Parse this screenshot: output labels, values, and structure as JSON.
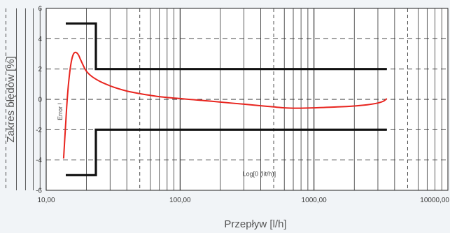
{
  "chart_data": {
    "type": "line",
    "xlabel": "Przepływ [l/h]",
    "ylabel": "Zakres błędów [%]",
    "x_scale": "log",
    "xlim": [
      10,
      10000
    ],
    "ylim": [
      -6,
      6
    ],
    "x_tick_labels": [
      "10,00",
      "100,00",
      "1000,00",
      "10000,00"
    ],
    "x_tick_values": [
      10,
      100,
      1000,
      10000
    ],
    "y_tick_labels": [
      "6",
      "4",
      "2",
      "0",
      "-2",
      "-4",
      "-6"
    ],
    "y_tick_values": [
      6,
      4,
      2,
      0,
      -2,
      -4,
      -6
    ],
    "inner_y_label": "Error !",
    "inner_x_label": "Log[0 (lit/h)]",
    "error_curve": {
      "color": "#e8251f",
      "x": [
        13.5,
        14,
        14.5,
        15,
        15.5,
        16,
        16.5,
        17,
        17.5,
        18,
        19,
        20,
        22,
        25,
        28,
        32,
        40,
        50,
        70,
        100,
        150,
        200,
        300,
        400,
        500,
        600,
        700,
        800,
        1000,
        1500,
        2000,
        2500,
        3000,
        3300,
        3500
      ],
      "y": [
        -3.9,
        -1.5,
        0.5,
        1.8,
        2.6,
        3.0,
        3.1,
        3.05,
        2.9,
        2.65,
        2.2,
        1.85,
        1.5,
        1.2,
        1.0,
        0.8,
        0.55,
        0.38,
        0.18,
        0.05,
        -0.08,
        -0.18,
        -0.32,
        -0.42,
        -0.5,
        -0.56,
        -0.58,
        -0.58,
        -0.56,
        -0.5,
        -0.44,
        -0.36,
        -0.24,
        -0.12,
        0.05
      ]
    },
    "upper_limit": {
      "color": "#111111",
      "x": [
        14,
        23.5,
        23.5,
        3500
      ],
      "y": [
        5,
        5,
        2,
        2
      ]
    },
    "lower_limit": {
      "color": "#111111",
      "x": [
        14,
        23.5,
        23.5,
        3500
      ],
      "y": [
        -5,
        -5,
        -2,
        -2
      ]
    },
    "grid": "vertical log grid lines (major and minor) with dashed horizontal lines",
    "legend": "none"
  }
}
